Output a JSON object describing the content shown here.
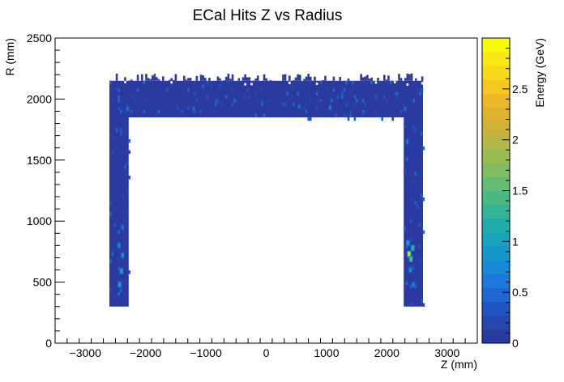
{
  "chart_data": {
    "type": "heatmap",
    "title": "ECal Hits Z vs Radius",
    "xlabel": "Z (mm)",
    "ylabel": "R (mm)",
    "zlabel": "Energy (GeV)",
    "xlim": [
      -3500,
      3500
    ],
    "ylim": [
      0,
      2500
    ],
    "zlim": [
      0,
      3
    ],
    "x_ticks": [
      -3000,
      -2000,
      -1000,
      0,
      1000,
      2000,
      3000
    ],
    "x_tick_labels": [
      "−3000",
      "−2000",
      "−1000",
      "0",
      "1000",
      "2000",
      "3000"
    ],
    "y_ticks": [
      0,
      500,
      1000,
      1500,
      2000,
      2500
    ],
    "y_tick_labels": [
      "0",
      "500",
      "1000",
      "1500",
      "2000",
      "2500"
    ],
    "z_ticks": [
      0,
      0.5,
      1,
      1.5,
      2,
      2.5
    ],
    "z_tick_labels": [
      "0",
      "0.5",
      "1",
      "1.5",
      "2",
      "2.5"
    ],
    "palette": [
      "#2a3a9e",
      "#2647ad",
      "#2255c4",
      "#1e66d4",
      "#1b78dc",
      "#1988d6",
      "#1697cb",
      "#17a3bd",
      "#20acaa",
      "#33b496",
      "#4ab984",
      "#65bd73",
      "#80bd62",
      "#9bbb53",
      "#b4b746",
      "#cab23b",
      "#ddb230",
      "#ecb82a",
      "#f5c722",
      "#f8d81c",
      "#f9e716",
      "#f9f90e"
    ],
    "regions": [
      {
        "name": "barrel",
        "z": [
          -2600,
          2600
        ],
        "r": [
          1850,
          2150
        ],
        "value": 0.15
      },
      {
        "name": "endcap-negative",
        "z": [
          -2600,
          -2280
        ],
        "r": [
          300,
          1850
        ],
        "value": 0.15
      },
      {
        "name": "endcap-positive",
        "z": [
          2280,
          2600
        ],
        "r": [
          300,
          1850
        ],
        "value": 0.15
      }
    ],
    "hotspots": [
      {
        "z": 2370,
        "r": 730,
        "value": 2.8
      },
      {
        "z": 2400,
        "r": 690,
        "value": 1.6
      },
      {
        "z": 2430,
        "r": 780,
        "value": 1.3
      },
      {
        "z": 2350,
        "r": 820,
        "value": 1.0
      },
      {
        "z": 2390,
        "r": 600,
        "value": 0.9
      },
      {
        "z": 2440,
        "r": 480,
        "value": 0.7
      },
      {
        "z": 2340,
        "r": 1650,
        "value": 0.6
      },
      {
        "z": -2400,
        "r": 590,
        "value": 1.1
      },
      {
        "z": -2430,
        "r": 480,
        "value": 1.0
      },
      {
        "z": -2380,
        "r": 720,
        "value": 0.9
      },
      {
        "z": -2440,
        "r": 800,
        "value": 0.8
      },
      {
        "z": -2380,
        "r": 950,
        "value": 0.6
      },
      {
        "z": -2300,
        "r": 1920,
        "value": 0.6
      },
      {
        "z": -1200,
        "r": 1920,
        "value": 0.5
      },
      {
        "z": 550,
        "r": 1940,
        "value": 0.5
      },
      {
        "z": 1060,
        "r": 1930,
        "value": 0.6
      },
      {
        "z": 2300,
        "r": 1920,
        "value": 0.5
      }
    ]
  }
}
